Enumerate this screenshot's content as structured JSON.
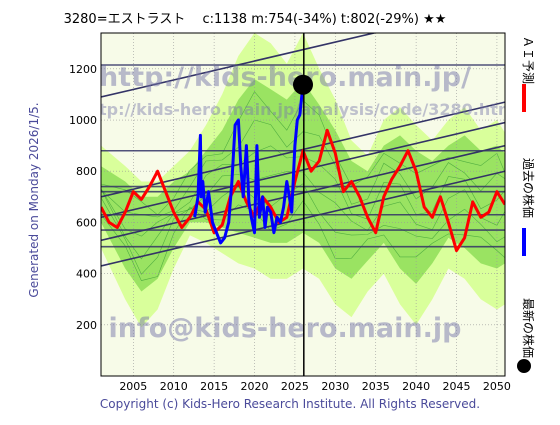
{
  "header": {
    "title": "3280=エストラスト　 c:1138  m:754(-34%)  t:802(-29%)  ★★"
  },
  "side_text": {
    "left": "Generated on Monday 2026/1/5.",
    "right_legend": [
      {
        "label": "ＡＩ予測",
        "color": "#ff0000",
        "marker": "line"
      },
      {
        "label": "過去の株価",
        "color": "#0000ff",
        "marker": "line"
      },
      {
        "label": "最新の株価",
        "color": "#000000",
        "marker": "dot"
      }
    ]
  },
  "watermarks": {
    "top": "http://kids-hero.main.jp/",
    "middle": "http://kids-hero.main.jp/analysis/code/3280.html",
    "bottom": "info@kids-hero.main.jp"
  },
  "footer": {
    "copyright": "Copyright (c) Kids-Hero Research Institute. All Rights Reserved."
  },
  "colors": {
    "ai_line": "#ff0000",
    "past_line": "#0000ff",
    "latest_dot": "#000000",
    "band_dark": "#66cc33",
    "band_light": "#ccff99",
    "band_yellow": "#ffff99",
    "trend_lines": "#333366",
    "plot_bg": "#f7fbe8"
  },
  "chart_data": {
    "type": "line",
    "xlim": [
      2001,
      2051
    ],
    "ylim": [
      0,
      1340
    ],
    "x_ticks": [
      2005,
      2010,
      2015,
      2020,
      2025,
      2030,
      2035,
      2040,
      2045,
      2050
    ],
    "y_ticks": [
      200,
      400,
      600,
      800,
      1000,
      1200
    ],
    "grid": true,
    "horizontal_levels": [
      505,
      570,
      630,
      720,
      740,
      880,
      1215
    ],
    "current_year_marker": 2026.1,
    "latest_price": {
      "x": 2026.0,
      "y": 1138
    },
    "trend_lines": [
      {
        "x": [
          2001,
          2051
        ],
        "y": [
          1090,
          1460
        ]
      },
      {
        "x": [
          2001,
          2051
        ],
        "y": [
          700,
          1070
        ]
      },
      {
        "x": [
          2001,
          2051
        ],
        "y": [
          620,
          990
        ]
      },
      {
        "x": [
          2001,
          2051
        ],
        "y": [
          530,
          900
        ]
      },
      {
        "x": [
          2001,
          2051
        ],
        "y": [
          430,
          800
        ]
      }
    ],
    "band_outer": {
      "x": [
        2001,
        2004,
        2006,
        2008,
        2010,
        2012,
        2014,
        2016,
        2018,
        2020,
        2022,
        2024,
        2026,
        2028,
        2030,
        2032,
        2034,
        2036,
        2038,
        2040,
        2042,
        2044,
        2046,
        2048,
        2050,
        2051
      ],
      "upper": [
        900,
        820,
        760,
        760,
        820,
        880,
        980,
        1100,
        1250,
        1340,
        1300,
        1220,
        1340,
        1200,
        1080,
        920,
        860,
        1000,
        1050,
        980,
        920,
        1000,
        1050,
        960,
        1000,
        950
      ],
      "lower": [
        500,
        300,
        190,
        260,
        420,
        550,
        520,
        480,
        440,
        420,
        380,
        380,
        420,
        380,
        280,
        230,
        330,
        400,
        280,
        200,
        300,
        420,
        380,
        300,
        260,
        280
      ]
    },
    "band_inner": {
      "x": [
        2001,
        2004,
        2006,
        2008,
        2010,
        2012,
        2014,
        2016,
        2018,
        2020,
        2022,
        2024,
        2026,
        2028,
        2030,
        2032,
        2034,
        2036,
        2038,
        2040,
        2042,
        2044,
        2046,
        2048,
        2050,
        2051
      ],
      "upper": [
        820,
        760,
        700,
        700,
        760,
        800,
        880,
        960,
        1080,
        1160,
        1120,
        1080,
        1150,
        1060,
        960,
        840,
        800,
        900,
        940,
        880,
        840,
        900,
        940,
        880,
        900,
        870
      ],
      "lower": [
        600,
        420,
        330,
        380,
        500,
        600,
        600,
        580,
        560,
        540,
        520,
        520,
        560,
        520,
        420,
        380,
        450,
        520,
        420,
        360,
        440,
        540,
        500,
        440,
        420,
        440
      ]
    },
    "series": [
      {
        "name": "ＡＩ予測",
        "color": "#ff0000",
        "x": [
          2001,
          2002,
          2003,
          2004,
          2005,
          2006,
          2007,
          2008,
          2009,
          2010,
          2011,
          2012,
          2013,
          2014,
          2015,
          2016,
          2017,
          2018,
          2019,
          2020,
          2021,
          2022,
          2023,
          2024,
          2025,
          2026,
          2027,
          2028,
          2029,
          2030,
          2031,
          2032,
          2033,
          2034,
          2035,
          2036,
          2037,
          2038,
          2039,
          2040,
          2041,
          2042,
          2043,
          2044,
          2045,
          2046,
          2047,
          2048,
          2049,
          2050,
          2051
        ],
        "y": [
          660,
          600,
          580,
          640,
          720,
          690,
          740,
          800,
          720,
          640,
          580,
          620,
          680,
          650,
          560,
          590,
          700,
          760,
          680,
          620,
          700,
          660,
          600,
          620,
          760,
          880,
          800,
          840,
          960,
          870,
          720,
          760,
          700,
          620,
          560,
          700,
          770,
          820,
          880,
          800,
          660,
          620,
          700,
          600,
          490,
          540,
          680,
          620,
          640,
          720,
          670
        ]
      },
      {
        "name": "過去の株価",
        "color": "#0000ff",
        "x": [
          2012.6,
          2013.0,
          2013.3,
          2013.4,
          2013.6,
          2013.9,
          2014.3,
          2014.8,
          2015.3,
          2015.8,
          2016.3,
          2016.8,
          2017.2,
          2017.6,
          2018.0,
          2018.3,
          2018.6,
          2019.0,
          2019.3,
          2019.6,
          2020.0,
          2020.3,
          2020.6,
          2021.0,
          2021.3,
          2021.6,
          2022.0,
          2022.4,
          2022.8,
          2023.2,
          2023.6,
          2024.0,
          2024.3,
          2024.6,
          2025.0,
          2025.3,
          2025.6,
          2026.0
        ],
        "y": [
          620,
          700,
          940,
          700,
          760,
          640,
          720,
          600,
          560,
          520,
          540,
          600,
          760,
          980,
          1000,
          820,
          700,
          900,
          680,
          620,
          560,
          900,
          620,
          700,
          580,
          660,
          640,
          560,
          620,
          600,
          660,
          760,
          700,
          640,
          900,
          1000,
          1020,
          1138
        ]
      }
    ]
  }
}
